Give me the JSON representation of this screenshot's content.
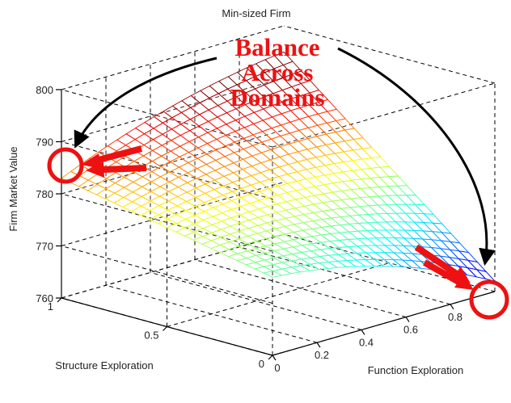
{
  "chart_data": {
    "type": "surface",
    "title": "Min-sized Firm",
    "xlabel": "Function Exploration",
    "ylabel": "Structure Exploration",
    "zlabel": "Firm Market Value",
    "xlim": [
      0,
      1
    ],
    "ylim": [
      0,
      1
    ],
    "zlim": [
      760,
      800
    ],
    "x_ticks": [
      "0",
      "0.2",
      "0.4",
      "0.6",
      "0.8"
    ],
    "y_ticks": [
      "0",
      "0.5",
      "1"
    ],
    "z_ticks": [
      "760",
      "770",
      "780",
      "790",
      "800"
    ],
    "grid": true,
    "colormap": "jet",
    "corner_values": {
      "x0_y0": 775,
      "x1_y0": 762,
      "x0_y1": 783,
      "x1_y1": 795
    },
    "annotation": {
      "text_lines": [
        "Balance",
        "Across",
        "Domains"
      ],
      "color": "#ee1111"
    }
  }
}
